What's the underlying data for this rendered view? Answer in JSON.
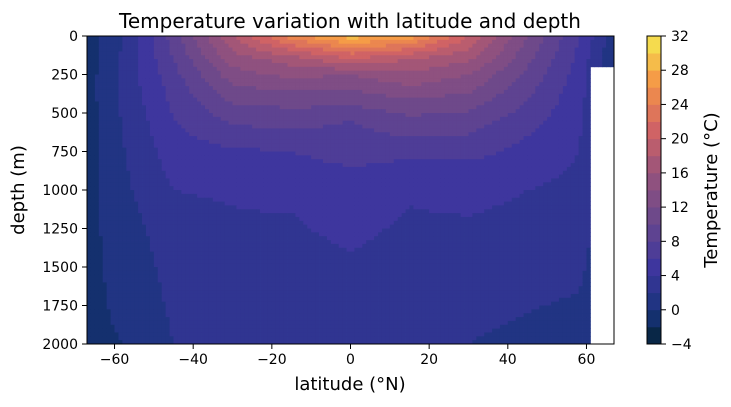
{
  "chart_data": {
    "type": "heatmap",
    "title": "Temperature variation with latitude and depth",
    "xlabel": "latitude (°N)",
    "ylabel": "depth (m)",
    "xlim": [
      -67,
      67
    ],
    "ylim": [
      2000,
      0
    ],
    "y_inverted": true,
    "xticks": [
      -60,
      -40,
      -20,
      0,
      20,
      40,
      60
    ],
    "xtick_labels": [
      "−60",
      "−40",
      "−20",
      "0",
      "20",
      "40",
      "60"
    ],
    "yticks": [
      0,
      250,
      500,
      750,
      1000,
      1250,
      1500,
      1750,
      2000
    ],
    "ytick_labels": [
      "0",
      "250",
      "500",
      "750",
      "1000",
      "1250",
      "1500",
      "1750",
      "2000"
    ],
    "colorbar": {
      "label": "Temperature (°C)",
      "range": [
        -4,
        32
      ],
      "step": 2,
      "ticks": [
        -4,
        0,
        4,
        8,
        12,
        16,
        20,
        24,
        28,
        32
      ],
      "tick_labels": [
        "−4",
        "0",
        "4",
        "8",
        "12",
        "16",
        "20",
        "24",
        "28",
        "32"
      ],
      "colormap": "thermal"
    },
    "no_data_region": "east of ~60°N below ~200 m",
    "profiles": [
      {
        "lat": -67,
        "temp_by_depth": [
          [
            0,
            -1
          ],
          [
            2000,
            -0.5
          ]
        ]
      },
      {
        "lat": -58,
        "temp_by_depth": [
          [
            0,
            2
          ],
          [
            300,
            2.5
          ],
          [
            1000,
            1.5
          ],
          [
            2000,
            0
          ]
        ]
      },
      {
        "lat": -45,
        "temp_by_depth": [
          [
            0,
            9
          ],
          [
            300,
            7
          ],
          [
            750,
            5
          ],
          [
            1250,
            3
          ],
          [
            2000,
            2
          ]
        ]
      },
      {
        "lat": -30,
        "temp_by_depth": [
          [
            0,
            18
          ],
          [
            200,
            14
          ],
          [
            500,
            9
          ],
          [
            800,
            5
          ],
          [
            1100,
            4
          ],
          [
            2000,
            2.5
          ]
        ]
      },
      {
        "lat": -15,
        "temp_by_depth": [
          [
            0,
            25
          ],
          [
            150,
            17
          ],
          [
            400,
            11
          ],
          [
            750,
            6
          ],
          [
            1150,
            4
          ],
          [
            2000,
            2.5
          ]
        ]
      },
      {
        "lat": 0,
        "temp_by_depth": [
          [
            0,
            29
          ],
          [
            80,
            24
          ],
          [
            250,
            14
          ],
          [
            550,
            8
          ],
          [
            1000,
            5
          ],
          [
            2000,
            2.5
          ]
        ]
      },
      {
        "lat": 15,
        "temp_by_depth": [
          [
            0,
            27
          ],
          [
            150,
            18
          ],
          [
            450,
            11
          ],
          [
            800,
            6
          ],
          [
            1100,
            4
          ],
          [
            2000,
            2.5
          ]
        ]
      },
      {
        "lat": 30,
        "temp_by_depth": [
          [
            0,
            20
          ],
          [
            250,
            14
          ],
          [
            550,
            9
          ],
          [
            900,
            5
          ],
          [
            1300,
            3.5
          ],
          [
            2000,
            2
          ]
        ]
      },
      {
        "lat": 45,
        "temp_by_depth": [
          [
            0,
            12
          ],
          [
            300,
            9
          ],
          [
            650,
            6
          ],
          [
            1000,
            4
          ],
          [
            2000,
            1.5
          ]
        ]
      },
      {
        "lat": 58,
        "temp_by_depth": [
          [
            0,
            6
          ],
          [
            300,
            5
          ],
          [
            750,
            4
          ],
          [
            1500,
            2.5
          ],
          [
            2000,
            1
          ]
        ]
      },
      {
        "lat": 67,
        "temp_by_depth": [
          [
            0,
            1
          ],
          [
            200,
            0
          ],
          [
            2000,
            0
          ]
        ]
      }
    ]
  }
}
